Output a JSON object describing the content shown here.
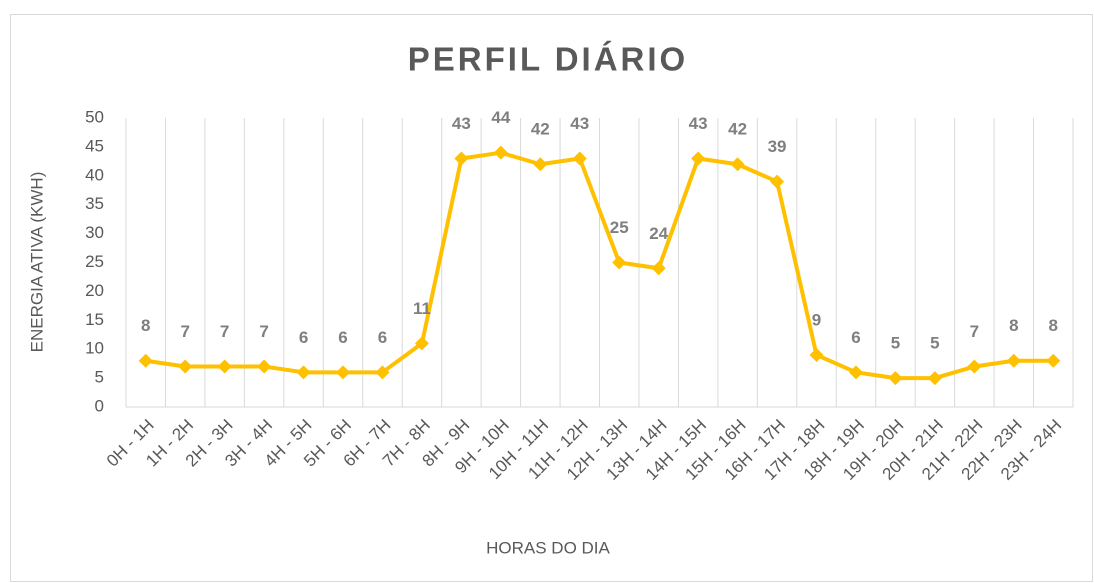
{
  "chart_data": {
    "type": "line",
    "title": "PERFIL DIÁRIO",
    "x_label": "HORAS DO DIA",
    "y_label": "ENERGIA ATIVA (KWH)",
    "categories": [
      "0H - 1H",
      "1H - 2H",
      "2H - 3H",
      "3H - 4H",
      "4H - 5H",
      "5H - 6H",
      "6H - 7H",
      "7H - 8H",
      "8H - 9H",
      "9H - 10H",
      "10H - 11H",
      "11H - 12H",
      "12H - 13H",
      "13H - 14H",
      "14H - 15H",
      "15H - 16H",
      "16H - 17H",
      "17H - 18H",
      "18H - 19H",
      "19H - 20H",
      "20H - 21H",
      "21H - 22H",
      "22H - 23H",
      "23H - 24H"
    ],
    "values": [
      8,
      7,
      7,
      7,
      6,
      6,
      6,
      11,
      43,
      44,
      42,
      43,
      25,
      24,
      43,
      42,
      39,
      9,
      6,
      5,
      5,
      7,
      8,
      8
    ],
    "color": "#ffc000",
    "ylim": [
      0,
      50
    ],
    "yticks": [
      0,
      5,
      10,
      15,
      20,
      25,
      30,
      35,
      40,
      45,
      50
    ],
    "grid": "x"
  }
}
